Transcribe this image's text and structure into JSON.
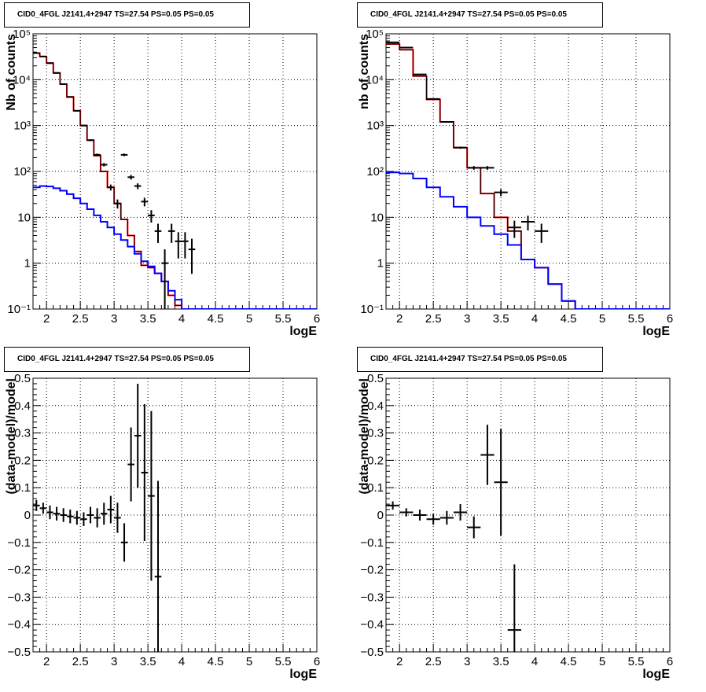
{
  "chart_data": [
    {
      "type": "line",
      "title": "CID0_4FGL J2141.4+2947 TS=27.54 PS=0.05 PS=0.05",
      "xlabel": "logE",
      "ylabel": "Nb of counts",
      "xlim": [
        1.8,
        6.0
      ],
      "ylim": [
        0.1,
        100000
      ],
      "yscale": "log",
      "grid": true,
      "x_ticks": [
        "2",
        "2.5",
        "3",
        "3.5",
        "4",
        "4.5",
        "5",
        "5.5",
        "6"
      ],
      "y_ticks": [
        "10⁻¹",
        "1",
        "10",
        "10²",
        "10³",
        "10⁴",
        "10⁵"
      ],
      "bin_edges": [
        1.8,
        1.9,
        2.0,
        2.1,
        2.2,
        2.3,
        2.4,
        2.5,
        2.6,
        2.7,
        2.8,
        2.9,
        3.0,
        3.1,
        3.2,
        3.3,
        3.4,
        3.5,
        3.6,
        3.7,
        3.8,
        3.9,
        4.0,
        4.1,
        4.2,
        4.3,
        4.4,
        4.5,
        4.6,
        4.7,
        4.8,
        4.9,
        5.0,
        5.1,
        5.2,
        5.3,
        5.4,
        5.5,
        5.6,
        5.7,
        5.8,
        5.9,
        6.0
      ],
      "series": [
        {
          "color": "#ff0000",
          "values": [
            38000,
            32000,
            23000,
            14000,
            8000,
            4200,
            2100,
            1000,
            480,
            220,
            100,
            45,
            20,
            9,
            4,
            1.8,
            0.9,
            0.8,
            0.6,
            0.4,
            0.2,
            0.12,
            0.1,
            0.1,
            0.1,
            0.1,
            0.1,
            0.1,
            0.1,
            0.1,
            0.1,
            0.1,
            0.1,
            0.1,
            0.1,
            0.1,
            0.1,
            0.1,
            0.1,
            0.1,
            0.1,
            0.1
          ]
        },
        {
          "color": "#000000",
          "values": [
            38000,
            32000,
            23000,
            14000,
            8000,
            4200,
            2100,
            1000,
            480,
            220,
            100,
            45,
            20,
            9,
            4,
            1.8,
            0.9,
            0.8,
            0.6,
            0.4,
            0.2,
            0.12,
            0.1,
            0.1,
            0.1,
            0.1,
            0.1,
            0.1,
            0.1,
            0.1,
            0.1,
            0.1,
            0.1,
            0.1,
            0.1,
            0.1,
            0.1,
            0.1,
            0.1,
            0.1,
            0.1,
            0.1
          ]
        },
        {
          "color": "#0000ff",
          "values": [
            45,
            48,
            47,
            43,
            38,
            32,
            26,
            20,
            15,
            11,
            8,
            6,
            4.3,
            3.2,
            2.3,
            1.6,
            1.1,
            0.85,
            0.6,
            0.4,
            0.25,
            0.16,
            0.1,
            0.1,
            0.1,
            0.1,
            0.1,
            0.1,
            0.1,
            0.1,
            0.1,
            0.1,
            0.1,
            0.1,
            0.1,
            0.1,
            0.1,
            0.1,
            0.1,
            0.1,
            0.1,
            0.1
          ]
        }
      ],
      "data_points": [
        {
          "x": 1.85,
          "y": 38000
        },
        {
          "x": 1.95,
          "y": 32000
        },
        {
          "x": 2.05,
          "y": 23000
        },
        {
          "x": 2.15,
          "y": 14000
        },
        {
          "x": 2.25,
          "y": 8000
        },
        {
          "x": 2.35,
          "y": 4200
        },
        {
          "x": 2.45,
          "y": 2100
        },
        {
          "x": 2.55,
          "y": 1000
        },
        {
          "x": 2.65,
          "y": 480
        },
        {
          "x": 2.75,
          "y": 230
        },
        {
          "x": 2.85,
          "y": 140
        },
        {
          "x": 2.95,
          "y": 45
        },
        {
          "x": 3.05,
          "y": 20
        },
        {
          "x": 3.15,
          "y": 230
        },
        {
          "x": 3.25,
          "y": 75
        },
        {
          "x": 3.35,
          "y": 48
        },
        {
          "x": 3.45,
          "y": 22
        },
        {
          "x": 3.55,
          "y": 11
        },
        {
          "x": 3.65,
          "y": 5
        },
        {
          "x": 3.75,
          "y": 1
        },
        {
          "x": 3.85,
          "y": 5
        },
        {
          "x": 3.95,
          "y": 3
        },
        {
          "x": 4.05,
          "y": 3
        },
        {
          "x": 4.15,
          "y": 2
        }
      ]
    },
    {
      "type": "line",
      "title": "CID0_4FGL J2141.4+2947 TS=27.54 PS=0.05 PS=0.05",
      "xlabel": "logE",
      "ylabel": "nb of counts",
      "xlim": [
        1.8,
        6.0
      ],
      "ylim": [
        0.1,
        100000
      ],
      "yscale": "log",
      "grid": true,
      "x_ticks": [
        "2",
        "2.5",
        "3",
        "3.5",
        "4",
        "4.5",
        "5",
        "5.5",
        "6"
      ],
      "y_ticks": [
        "10⁻¹",
        "1",
        "10",
        "10²",
        "10³",
        "10⁴",
        "10⁵"
      ],
      "bin_edges": [
        1.8,
        2.0,
        2.2,
        2.4,
        2.6,
        2.8,
        3.0,
        3.2,
        3.4,
        3.6,
        3.8,
        4.0,
        4.2,
        4.4,
        4.6,
        4.8,
        5.0,
        5.2,
        5.4,
        5.6,
        5.8,
        6.0
      ],
      "series": [
        {
          "color": "#ff0000",
          "values": [
            60000,
            45000,
            12000,
            3700,
            1200,
            330,
            120,
            33,
            10,
            5,
            1.2,
            0.8,
            0.35,
            0.15,
            0.1,
            0.1,
            0.1,
            0.1,
            0.1,
            0.1,
            0.1
          ]
        },
        {
          "color": "#000000",
          "values": [
            60000,
            45000,
            12000,
            3700,
            1200,
            330,
            120,
            33,
            10,
            5,
            1.2,
            0.8,
            0.35,
            0.15,
            0.1,
            0.1,
            0.1,
            0.1,
            0.1,
            0.1,
            0.1
          ]
        },
        {
          "color": "#0000ff",
          "values": [
            95,
            90,
            70,
            45,
            28,
            17,
            10,
            6.5,
            4.3,
            2.5,
            1.2,
            0.8,
            0.35,
            0.15,
            0.1,
            0.1,
            0.1,
            0.1,
            0.1,
            0.1,
            0.1
          ]
        }
      ],
      "data_points": [
        {
          "x": 1.9,
          "y": 65000
        },
        {
          "x": 2.1,
          "y": 50000
        },
        {
          "x": 2.3,
          "y": 13000
        },
        {
          "x": 2.5,
          "y": 3800
        },
        {
          "x": 2.7,
          "y": 1200
        },
        {
          "x": 2.9,
          "y": 330
        },
        {
          "x": 3.1,
          "y": 120
        },
        {
          "x": 3.3,
          "y": 120
        },
        {
          "x": 3.5,
          "y": 35
        },
        {
          "x": 3.7,
          "y": 6
        },
        {
          "x": 3.9,
          "y": 8
        },
        {
          "x": 4.1,
          "y": 5
        }
      ]
    },
    {
      "type": "scatter",
      "title": "CID0_4FGL J2141.4+2947 TS=27.54 PS=0.05 PS=0.05",
      "xlabel": "logE",
      "ylabel": "(data-model)/model",
      "xlim": [
        1.8,
        6.0
      ],
      "ylim": [
        -0.5,
        0.5
      ],
      "grid": true,
      "x_ticks": [
        "2",
        "2.5",
        "3",
        "3.5",
        "4",
        "4.5",
        "5",
        "5.5",
        "6"
      ],
      "y_ticks": [
        "−0.5",
        "−0.4",
        "−0.3",
        "−0.2",
        "−0.1",
        "0",
        "0.1",
        "0.2",
        "0.3",
        "0.4",
        "0.5"
      ],
      "points": [
        {
          "x": 1.85,
          "y": 0.035,
          "err": 0.02
        },
        {
          "x": 1.95,
          "y": 0.025,
          "err": 0.02
        },
        {
          "x": 2.05,
          "y": 0.01,
          "err": 0.025
        },
        {
          "x": 2.15,
          "y": 0.005,
          "err": 0.025
        },
        {
          "x": 2.25,
          "y": 0.0,
          "err": 0.025
        },
        {
          "x": 2.35,
          "y": -0.005,
          "err": 0.025
        },
        {
          "x": 2.45,
          "y": -0.01,
          "err": 0.025
        },
        {
          "x": 2.55,
          "y": -0.015,
          "err": 0.025
        },
        {
          "x": 2.65,
          "y": 0.0,
          "err": 0.03
        },
        {
          "x": 2.75,
          "y": -0.01,
          "err": 0.035
        },
        {
          "x": 2.85,
          "y": 0.005,
          "err": 0.04
        },
        {
          "x": 2.95,
          "y": 0.02,
          "err": 0.05
        },
        {
          "x": 3.05,
          "y": -0.01,
          "err": 0.055
        },
        {
          "x": 3.15,
          "y": -0.1,
          "err": 0.07
        },
        {
          "x": 3.25,
          "y": 0.185,
          "err": 0.135
        },
        {
          "x": 3.35,
          "y": 0.29,
          "err": 0.19
        },
        {
          "x": 3.45,
          "y": 0.155,
          "err": 0.25
        },
        {
          "x": 3.55,
          "y": 0.07,
          "err": 0.31
        },
        {
          "x": 3.65,
          "y": -0.225,
          "err": 0.35
        }
      ]
    },
    {
      "type": "scatter",
      "title": "CID0_4FGL J2141.4+2947 TS=27.54 PS=0.05 PS=0.05",
      "xlabel": "logE",
      "ylabel": "(data-model)/model",
      "xlim": [
        1.8,
        6.0
      ],
      "ylim": [
        -0.5,
        0.5
      ],
      "grid": true,
      "x_ticks": [
        "2",
        "2.5",
        "3",
        "3.5",
        "4",
        "4.5",
        "5",
        "5.5",
        "6"
      ],
      "y_ticks": [
        "−0.5",
        "−0.4",
        "−0.3",
        "−0.2",
        "−0.1",
        "0",
        "0.1",
        "0.2",
        "0.3",
        "0.4",
        "0.5"
      ],
      "points": [
        {
          "x": 1.9,
          "y": 0.035,
          "err": 0.015
        },
        {
          "x": 2.1,
          "y": 0.01,
          "err": 0.015
        },
        {
          "x": 2.3,
          "y": 0.0,
          "err": 0.02
        },
        {
          "x": 2.5,
          "y": -0.015,
          "err": 0.02
        },
        {
          "x": 2.7,
          "y": -0.01,
          "err": 0.025
        },
        {
          "x": 2.9,
          "y": 0.01,
          "err": 0.03
        },
        {
          "x": 3.1,
          "y": -0.045,
          "err": 0.04
        },
        {
          "x": 3.3,
          "y": 0.22,
          "err": 0.11
        },
        {
          "x": 3.5,
          "y": 0.12,
          "err": 0.195
        },
        {
          "x": 3.7,
          "y": -0.42,
          "err": 0.24
        }
      ]
    }
  ]
}
